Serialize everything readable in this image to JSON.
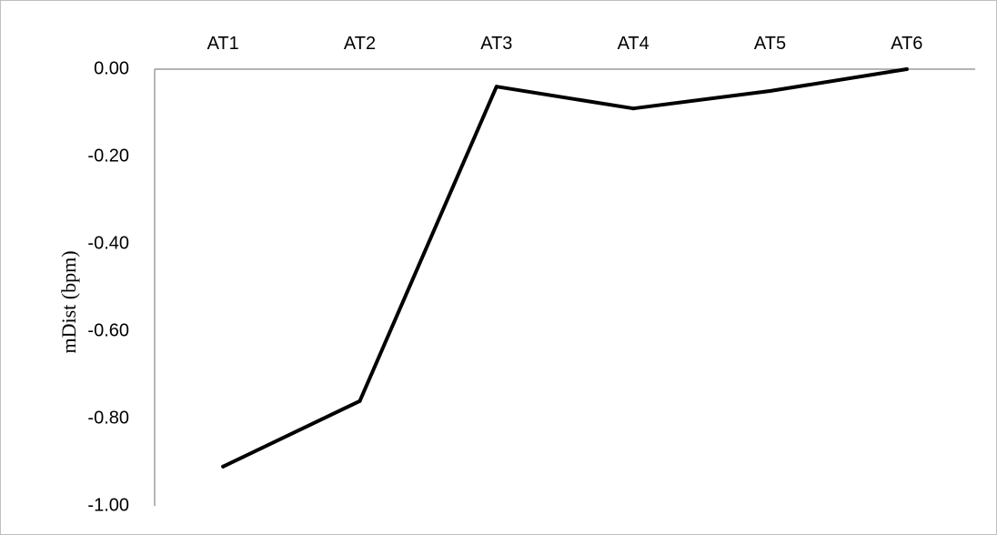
{
  "chart_data": {
    "type": "line",
    "title": "",
    "xlabel": "",
    "ylabel": "mDist (bpm)",
    "categories": [
      "AT1",
      "AT2",
      "AT3",
      "AT4",
      "AT5",
      "AT6"
    ],
    "series": [
      {
        "values": [
          -0.91,
          -0.76,
          -0.04,
          -0.09,
          -0.05,
          0.0
        ]
      }
    ],
    "ylim": [
      -1.0,
      0.0
    ],
    "yticks": [
      "0.00",
      "-0.20",
      "-0.40",
      "-0.60",
      "-0.80",
      "-1.00"
    ],
    "x_axis_position": "top",
    "grid": false,
    "legend": "none",
    "line_color": "#000000",
    "axis_color": "#868686"
  }
}
